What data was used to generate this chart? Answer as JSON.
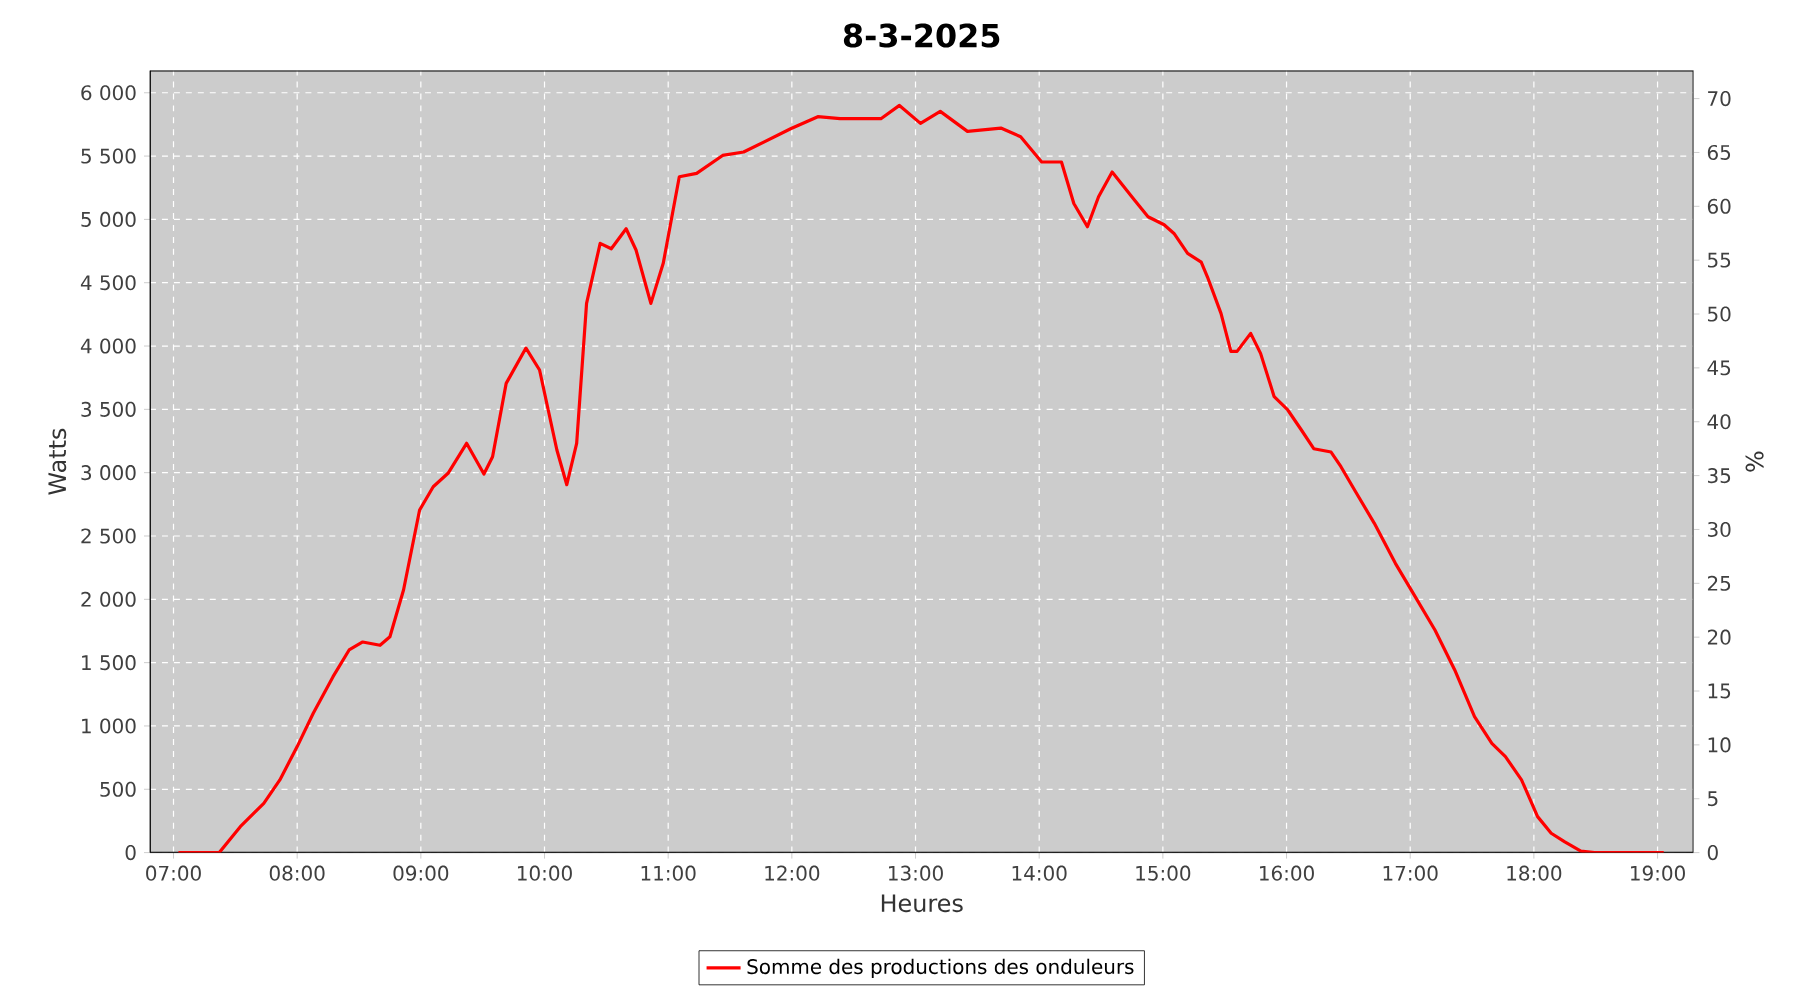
{
  "chart_data": {
    "type": "line",
    "title": "8-3-2025",
    "xlabel": "Heures",
    "ylabel": "Watts",
    "y2label": "%",
    "x": [
      7.04,
      7.37,
      7.54,
      7.73,
      7.86,
      8.0,
      8.13,
      8.29,
      8.42,
      8.53,
      8.67,
      8.75,
      8.86,
      8.99,
      9.1,
      9.22,
      9.37,
      9.51,
      9.58,
      9.69,
      9.85,
      9.96,
      10.1,
      10.18,
      10.26,
      10.34,
      10.45,
      10.54,
      10.66,
      10.74,
      10.86,
      10.96,
      11.09,
      11.23,
      11.44,
      11.61,
      11.99,
      12.21,
      12.39,
      12.72,
      12.87,
      13.04,
      13.2,
      13.42,
      13.69,
      13.85,
      14.02,
      14.18,
      14.28,
      14.39,
      14.48,
      14.59,
      14.77,
      14.88,
      15.01,
      15.09,
      15.2,
      15.31,
      15.36,
      15.47,
      15.55,
      15.6,
      15.71,
      15.79,
      15.9,
      16.01,
      16.12,
      16.22,
      16.36,
      16.44,
      16.55,
      16.71,
      16.88,
      17.04,
      17.2,
      17.36,
      17.52,
      17.66,
      17.77,
      17.9,
      18.03,
      18.14,
      18.25,
      18.38,
      18.49,
      19.05
    ],
    "series": [
      {
        "name": "Somme des productions des onduleurs",
        "color": "#ff0000",
        "values": [
          0,
          0,
          205,
          389,
          574,
          837,
          1100,
          1389,
          1600,
          1663,
          1637,
          1705,
          2074,
          2705,
          2889,
          2995,
          3232,
          2989,
          3126,
          3705,
          3984,
          3811,
          3179,
          2905,
          3232,
          4337,
          4811,
          4768,
          4926,
          4758,
          4337,
          4653,
          5337,
          5363,
          5505,
          5532,
          5716,
          5811,
          5795,
          5795,
          5900,
          5758,
          5853,
          5695,
          5721,
          5653,
          5453,
          5453,
          5126,
          4942,
          5179,
          5374,
          5153,
          5021,
          4958,
          4889,
          4732,
          4663,
          4547,
          4258,
          3958,
          3958,
          4100,
          3942,
          3600,
          3495,
          3337,
          3189,
          3163,
          3047,
          2863,
          2600,
          2284,
          2021,
          1758,
          1442,
          1074,
          863,
          758,
          574,
          284,
          153,
          84,
          11,
          0,
          0
        ]
      }
    ],
    "xlim": [
      6.81,
      19.29
    ],
    "xticks": [
      {
        "value": 7,
        "label": "07:00"
      },
      {
        "value": 8,
        "label": "08:00"
      },
      {
        "value": 9,
        "label": "09:00"
      },
      {
        "value": 10,
        "label": "10:00"
      },
      {
        "value": 11,
        "label": "11:00"
      },
      {
        "value": 12,
        "label": "12:00"
      },
      {
        "value": 13,
        "label": "13:00"
      },
      {
        "value": 14,
        "label": "14:00"
      },
      {
        "value": 15,
        "label": "15:00"
      },
      {
        "value": 16,
        "label": "16:00"
      },
      {
        "value": 17,
        "label": "17:00"
      },
      {
        "value": 18,
        "label": "18:00"
      },
      {
        "value": 19,
        "label": "19:00"
      }
    ],
    "ylim": [
      0,
      6175
    ],
    "yticks": [
      0,
      500,
      {
        "value": 1000,
        "label": "1 000"
      },
      {
        "value": 1500,
        "label": "1 500"
      },
      {
        "value": 2000,
        "label": "2 000"
      },
      {
        "value": 2500,
        "label": "2 500"
      },
      {
        "value": 3000,
        "label": "3 000"
      },
      {
        "value": 3500,
        "label": "3 500"
      },
      {
        "value": 4000,
        "label": "4 000"
      },
      {
        "value": 4500,
        "label": "4 500"
      },
      {
        "value": 5000,
        "label": "5 000"
      },
      {
        "value": 5500,
        "label": "5 500"
      },
      {
        "value": 6000,
        "label": "6 000"
      }
    ],
    "y2lim": [
      0,
      72.6
    ],
    "y2ticks": [
      0,
      5,
      10,
      15,
      20,
      25,
      30,
      35,
      40,
      45,
      50,
      55,
      60,
      65,
      70
    ],
    "grid": true,
    "legend": "bottom",
    "line_style": "solid"
  }
}
